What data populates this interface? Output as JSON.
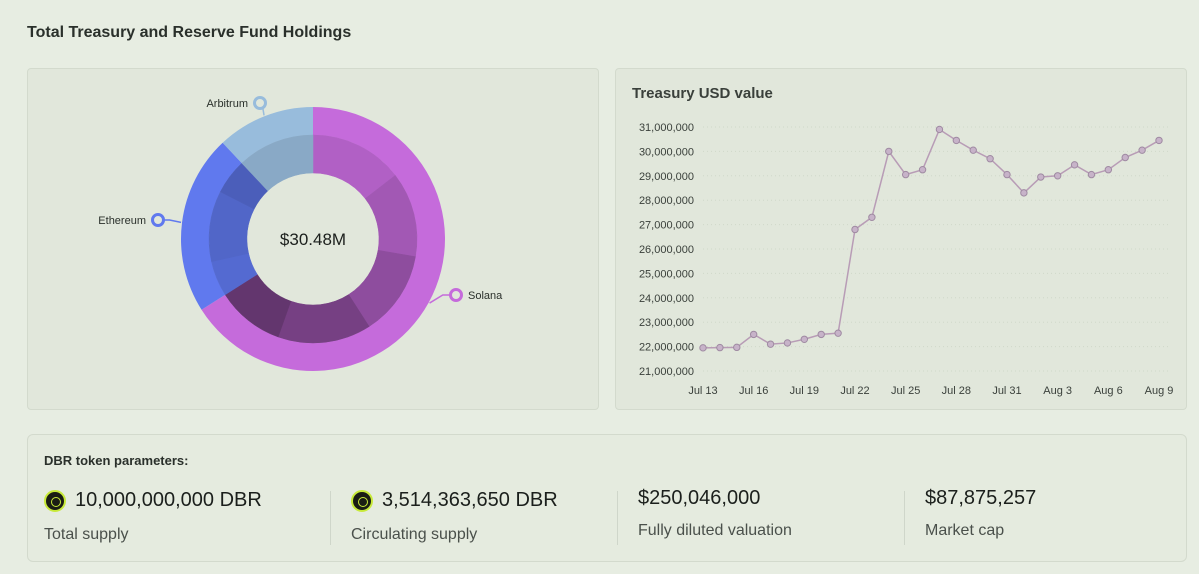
{
  "page": {
    "title": "Total Treasury and Reserve Fund Holdings"
  },
  "chart_data": [
    {
      "type": "pie",
      "center_label": "$30.48M",
      "slices": [
        {
          "label": "Solana",
          "value": 0.66,
          "color": "#c56bdb"
        },
        {
          "label": "Ethereum",
          "value": 0.22,
          "color": "#6079ee"
        },
        {
          "label": "Arbitrum",
          "value": 0.12,
          "color": "#98bcdc"
        }
      ]
    },
    {
      "type": "line",
      "title": "Treasury USD value",
      "x_ticks": [
        "Jul 13",
        "Jul 16",
        "Jul 19",
        "Jul 22",
        "Jul 25",
        "Jul 28",
        "Jul 31",
        "Aug 3",
        "Aug 6",
        "Aug 9"
      ],
      "y_ticks": [
        "31,000,000",
        "30,000,000",
        "29,000,000",
        "28,000,000",
        "27,000,000",
        "26,000,000",
        "25,000,000",
        "24,000,000",
        "23,000,000",
        "22,000,000",
        "21,000,000"
      ],
      "ylim": [
        21000000,
        31000000
      ],
      "series": [
        {
          "color": "#b89cb6",
          "points": [
            [
              "Jul 13",
              21950000
            ],
            [
              "Jul 14",
              21960000
            ],
            [
              "Jul 15",
              21970000
            ],
            [
              "Jul 16",
              22500000
            ],
            [
              "Jul 17",
              22100000
            ],
            [
              "Jul 18",
              22150000
            ],
            [
              "Jul 19",
              22300000
            ],
            [
              "Jul 20",
              22500000
            ],
            [
              "Jul 21",
              22550000
            ],
            [
              "Jul 22",
              26800000
            ],
            [
              "Jul 23",
              27300000
            ],
            [
              "Jul 24",
              30000000
            ],
            [
              "Jul 25",
              29050000
            ],
            [
              "Jul 26",
              29250000
            ],
            [
              "Jul 27",
              30900000
            ],
            [
              "Jul 28",
              30450000
            ],
            [
              "Jul 29",
              30050000
            ],
            [
              "Jul 30",
              29700000
            ],
            [
              "Jul 31",
              29050000
            ],
            [
              "Aug 1",
              28300000
            ],
            [
              "Aug 2",
              28950000
            ],
            [
              "Aug 3",
              29000000
            ],
            [
              "Aug 4",
              29450000
            ],
            [
              "Aug 5",
              29050000
            ],
            [
              "Aug 6",
              29250000
            ],
            [
              "Aug 7",
              29750000
            ],
            [
              "Aug 8",
              30050000
            ],
            [
              "Aug 9",
              30450000
            ]
          ]
        }
      ]
    }
  ],
  "params": {
    "title": "DBR token parameters:",
    "metrics": [
      {
        "value": "10,000,000,000 DBR",
        "label": "Total supply",
        "icon": "dbr-token-icon"
      },
      {
        "value": "3,514,363,650 DBR",
        "label": "Circulating supply",
        "icon": "dbr-token-icon"
      },
      {
        "value": "$250,046,000",
        "label": "Fully diluted valuation"
      },
      {
        "value": "$87,875,257",
        "label": "Market cap"
      }
    ]
  }
}
